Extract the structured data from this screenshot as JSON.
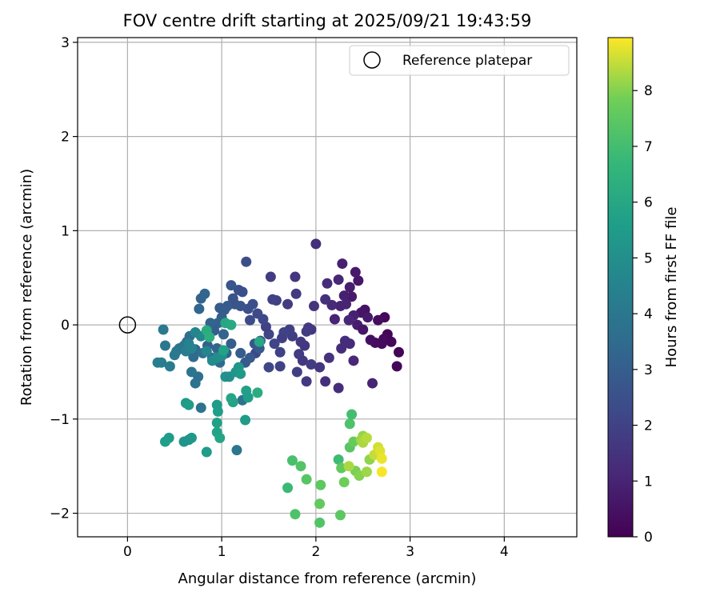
{
  "chart_data": {
    "type": "scatter",
    "title": "FOV centre drift starting at 2025/09/21 19:43:59",
    "xlabel": "Angular distance from reference (arcmin)",
    "ylabel": "Rotation from reference (arcmin)",
    "xlim": [
      -0.53,
      4.77
    ],
    "ylim": [
      -2.25,
      3.05
    ],
    "xticks": [
      0,
      1,
      2,
      3,
      4
    ],
    "yticks": [
      -2,
      -1,
      0,
      1,
      2,
      3
    ],
    "grid": true,
    "legend": {
      "placement": "top-right",
      "entries": [
        "Reference platepar"
      ]
    },
    "reference_point": {
      "x": 0,
      "y": 0,
      "label": "Reference platepar"
    },
    "colorbar": {
      "label": "Hours from first FF file",
      "colormap": "viridis",
      "range": [
        0,
        8.95
      ],
      "ticks": [
        0,
        1,
        2,
        3,
        4,
        5,
        6,
        7,
        8
      ]
    },
    "points": [
      [
        2.88,
        -0.29,
        0.1
      ],
      [
        2.86,
        -0.44,
        0.15
      ],
      [
        2.8,
        -0.18,
        0.2
      ],
      [
        2.76,
        -0.1,
        0.1
      ],
      [
        2.72,
        -0.15,
        0.25
      ],
      [
        2.7,
        -0.2,
        0.3
      ],
      [
        2.73,
        0.08,
        0.2
      ],
      [
        2.66,
        0.05,
        0.35
      ],
      [
        2.63,
        -0.19,
        0.3
      ],
      [
        2.58,
        -0.16,
        0.4
      ],
      [
        2.52,
        0.16,
        0.5
      ],
      [
        2.48,
        0.13,
        0.55
      ],
      [
        2.45,
        0.47,
        0.6
      ],
      [
        2.42,
        0.56,
        0.7
      ],
      [
        2.36,
        0.4,
        0.8
      ],
      [
        2.38,
        0.3,
        0.7
      ],
      [
        2.4,
        0.1,
        0.9
      ],
      [
        2.44,
        0.0,
        0.8
      ],
      [
        2.5,
        -0.05,
        0.6
      ],
      [
        2.55,
        0.08,
        0.7
      ],
      [
        2.6,
        -0.62,
        1.0
      ],
      [
        2.3,
        0.31,
        0.9
      ],
      [
        2.26,
        0.2,
        1.0
      ],
      [
        2.24,
        0.48,
        1.1
      ],
      [
        2.2,
        0.06,
        1.0
      ],
      [
        2.17,
        0.21,
        1.2
      ],
      [
        2.12,
        0.44,
        1.3
      ],
      [
        2.1,
        0.27,
        1.4
      ],
      [
        2.28,
        0.65,
        0.9
      ],
      [
        2.32,
        0.22,
        1.0
      ],
      [
        2.35,
        0.05,
        1.1
      ],
      [
        2.36,
        -0.2,
        1.2
      ],
      [
        2.31,
        -0.17,
        1.3
      ],
      [
        2.27,
        -0.25,
        1.3
      ],
      [
        2.4,
        -0.38,
        1.1
      ],
      [
        2.24,
        -0.67,
        1.3
      ],
      [
        2.1,
        -0.6,
        1.4
      ],
      [
        2.14,
        -0.35,
        1.5
      ],
      [
        2.04,
        -0.45,
        1.6
      ],
      [
        2.0,
        0.86,
        1.4
      ],
      [
        1.98,
        0.2,
        1.5
      ],
      [
        1.95,
        -0.05,
        1.6
      ],
      [
        1.92,
        -0.03,
        1.7
      ],
      [
        1.9,
        -0.07,
        1.8
      ],
      [
        1.88,
        -0.22,
        1.6
      ],
      [
        1.84,
        -0.18,
        1.7
      ],
      [
        1.82,
        -0.31,
        1.8
      ],
      [
        1.78,
        0.51,
        1.6
      ],
      [
        1.79,
        0.33,
        1.7
      ],
      [
        1.75,
        -0.12,
        1.8
      ],
      [
        1.72,
        -0.05,
        1.9
      ],
      [
        1.7,
        0.22,
        1.8
      ],
      [
        1.66,
        -0.08,
        2.0
      ],
      [
        1.64,
        -0.14,
        1.9
      ],
      [
        1.62,
        -0.29,
        2.0
      ],
      [
        1.58,
        0.26,
        1.9
      ],
      [
        1.54,
        0.27,
        2.0
      ],
      [
        1.52,
        0.51,
        1.8
      ],
      [
        1.5,
        -0.1,
        2.1
      ],
      [
        1.47,
        -0.02,
        2.0
      ],
      [
        1.44,
        0.06,
        2.2
      ],
      [
        1.41,
        -0.17,
        2.1
      ],
      [
        1.38,
        0.12,
        2.3
      ],
      [
        1.36,
        -0.3,
        2.2
      ],
      [
        1.33,
        0.22,
        2.4
      ],
      [
        1.3,
        0.05,
        2.3
      ],
      [
        1.28,
        0.17,
        2.5
      ],
      [
        1.26,
        0.67,
        2.4
      ],
      [
        1.22,
        0.35,
        2.5
      ],
      [
        1.2,
        0.2,
        2.6
      ],
      [
        1.18,
        0.37,
        2.5
      ],
      [
        1.14,
        0.22,
        2.7
      ],
      [
        1.12,
        0.28,
        2.6
      ],
      [
        1.1,
        0.42,
        2.7
      ],
      [
        1.06,
        0.2,
        2.8
      ],
      [
        1.03,
        0.16,
        2.9
      ],
      [
        1.0,
        0.08,
        3.0
      ],
      [
        0.98,
        0.18,
        2.9
      ],
      [
        0.96,
        0.02,
        3.1
      ],
      [
        0.92,
        -0.06,
        3.0
      ],
      [
        0.88,
        0.02,
        3.2
      ],
      [
        0.85,
        -0.22,
        3.1
      ],
      [
        0.82,
        0.33,
        3.3
      ],
      [
        0.78,
        0.28,
        3.2
      ],
      [
        0.76,
        0.17,
        3.3
      ],
      [
        0.72,
        -0.26,
        3.4
      ],
      [
        0.7,
        -0.34,
        3.5
      ],
      [
        0.66,
        -0.12,
        3.6
      ],
      [
        0.63,
        -0.18,
        3.7
      ],
      [
        0.6,
        -0.22,
        3.8
      ],
      [
        1.5,
        -0.45,
        2.2
      ],
      [
        1.56,
        -0.2,
        2.1
      ],
      [
        1.62,
        -0.44,
        2.0
      ],
      [
        1.8,
        -0.5,
        1.9
      ],
      [
        1.86,
        -0.38,
        1.7
      ],
      [
        1.9,
        -0.6,
        1.7
      ],
      [
        1.95,
        -0.42,
        1.8
      ],
      [
        1.2,
        -0.3,
        2.9
      ],
      [
        1.25,
        -0.4,
        2.8
      ],
      [
        1.3,
        -0.35,
        2.9
      ],
      [
        1.35,
        -0.2,
        2.7
      ],
      [
        1.4,
        -0.25,
        2.8
      ],
      [
        1.1,
        -0.2,
        3.0
      ],
      [
        1.05,
        -0.3,
        3.1
      ],
      [
        1.02,
        -0.1,
        3.2
      ],
      [
        0.95,
        -0.25,
        3.3
      ],
      [
        0.9,
        -0.35,
        3.4
      ],
      [
        0.98,
        -0.4,
        3.5
      ],
      [
        0.8,
        -0.3,
        3.6
      ],
      [
        0.75,
        -0.55,
        3.7
      ],
      [
        0.72,
        -0.62,
        3.8
      ],
      [
        0.68,
        -0.5,
        3.9
      ],
      [
        0.55,
        -0.25,
        3.9
      ],
      [
        0.52,
        -0.28,
        4.0
      ],
      [
        0.5,
        -0.32,
        4.1
      ],
      [
        0.45,
        -0.44,
        4.2
      ],
      [
        0.4,
        -0.22,
        4.0
      ],
      [
        0.38,
        -0.05,
        4.1
      ],
      [
        0.36,
        -0.4,
        4.2
      ],
      [
        0.32,
        -0.4,
        4.3
      ],
      [
        0.62,
        -0.28,
        4.3
      ],
      [
        0.65,
        -0.2,
        4.4
      ],
      [
        0.68,
        -0.25,
        4.5
      ],
      [
        0.72,
        -0.08,
        4.6
      ],
      [
        0.78,
        -0.12,
        4.7
      ],
      [
        0.84,
        -0.28,
        4.6
      ],
      [
        0.9,
        -0.38,
        4.8
      ],
      [
        0.95,
        -0.35,
        4.9
      ],
      [
        1.0,
        -0.33,
        5.0
      ],
      [
        1.04,
        -0.55,
        5.1
      ],
      [
        1.08,
        -0.55,
        5.0
      ],
      [
        0.78,
        -0.88,
        3.8
      ],
      [
        1.16,
        -1.33,
        4.0
      ],
      [
        1.15,
        -0.5,
        5.2
      ],
      [
        1.18,
        -0.45,
        5.3
      ],
      [
        1.2,
        -0.52,
        5.4
      ],
      [
        1.22,
        -0.8,
        3.8
      ],
      [
        1.25,
        -1.01,
        5.5
      ],
      [
        1.26,
        -0.7,
        5.7
      ],
      [
        1.28,
        -0.77,
        5.6
      ],
      [
        1.12,
        -0.82,
        5.8
      ],
      [
        1.1,
        -0.78,
        5.9
      ],
      [
        0.95,
        -0.85,
        5.5
      ],
      [
        0.96,
        -0.92,
        5.6
      ],
      [
        0.95,
        -1.04,
        5.7
      ],
      [
        0.95,
        -1.14,
        5.8
      ],
      [
        0.98,
        -1.2,
        5.9
      ],
      [
        0.84,
        -1.35,
        5.5
      ],
      [
        0.68,
        -1.2,
        5.4
      ],
      [
        0.65,
        -1.22,
        5.3
      ],
      [
        0.6,
        -1.24,
        5.2
      ],
      [
        0.44,
        -1.2,
        5.5
      ],
      [
        0.4,
        -1.24,
        5.6
      ],
      [
        0.62,
        -0.83,
        5.4
      ],
      [
        0.65,
        -0.85,
        5.5
      ],
      [
        1.02,
        -0.27,
        5.8
      ],
      [
        1.04,
        0.02,
        6.0
      ],
      [
        1.1,
        0.0,
        6.1
      ],
      [
        1.4,
        -0.18,
        6.0
      ],
      [
        1.38,
        -0.72,
        6.2
      ],
      [
        0.84,
        -0.06,
        6.2
      ],
      [
        0.87,
        -0.13,
        6.3
      ],
      [
        1.7,
        -1.73,
        6.8
      ],
      [
        1.78,
        -2.01,
        7.2
      ],
      [
        1.75,
        -1.44,
        7.1
      ],
      [
        1.84,
        -1.5,
        7.3
      ],
      [
        1.9,
        -1.64,
        7.4
      ],
      [
        2.05,
        -1.7,
        7.5
      ],
      [
        2.04,
        -1.9,
        7.6
      ],
      [
        2.04,
        -2.1,
        7.3
      ],
      [
        2.26,
        -2.02,
        7.5
      ],
      [
        2.24,
        -1.43,
        6.9
      ],
      [
        2.27,
        -1.52,
        7.6
      ],
      [
        2.3,
        -1.67,
        7.8
      ],
      [
        2.36,
        -1.05,
        7.2
      ],
      [
        2.38,
        -0.95,
        7.0
      ],
      [
        2.36,
        -1.3,
        7.4
      ],
      [
        2.4,
        -1.24,
        7.7
      ],
      [
        2.42,
        -1.55,
        7.9
      ],
      [
        2.46,
        -1.6,
        8.0
      ],
      [
        2.5,
        -1.18,
        8.1
      ],
      [
        2.48,
        -1.22,
        8.2
      ],
      [
        2.5,
        -1.25,
        8.3
      ],
      [
        2.54,
        -1.2,
        8.4
      ],
      [
        2.54,
        -1.56,
        8.2
      ],
      [
        2.57,
        -1.43,
        8.1
      ],
      [
        2.62,
        -1.38,
        8.5
      ],
      [
        2.66,
        -1.3,
        8.6
      ],
      [
        2.68,
        -1.34,
        8.7
      ],
      [
        2.7,
        -1.42,
        8.8
      ],
      [
        2.7,
        -1.56,
        8.9
      ],
      [
        2.35,
        -1.5,
        8.3
      ]
    ]
  }
}
